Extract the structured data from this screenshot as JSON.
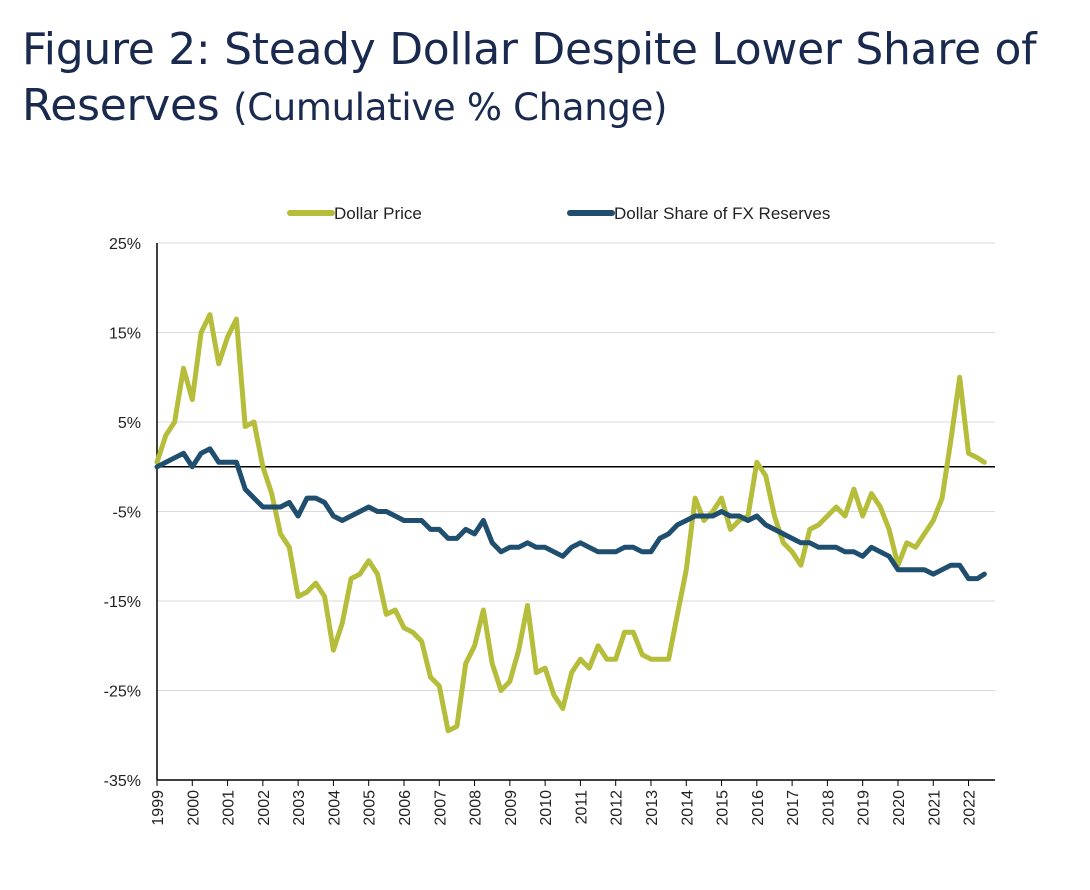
{
  "title": {
    "main": "Figure 2: Steady Dollar Despite Lower Share of Reserves",
    "suffix": "(Cumulative % Change)"
  },
  "chart_data": {
    "type": "line",
    "title": "Figure 2: Steady Dollar Despite Lower Share of Reserves (Cumulative % Change)",
    "xlabel": "",
    "ylabel": "",
    "ylim": [
      -35,
      25
    ],
    "yticks": [
      25,
      15,
      5,
      -5,
      -15,
      -25,
      -35
    ],
    "ytick_labels": [
      "25%",
      "15%",
      "5%",
      "-5%",
      "-15%",
      "-25%",
      "-35%"
    ],
    "xlim": [
      1999,
      2022.75
    ],
    "xticks": [
      1999,
      2000,
      2001,
      2002,
      2003,
      2004,
      2005,
      2006,
      2007,
      2008,
      2009,
      2010,
      2011,
      2012,
      2013,
      2014,
      2015,
      2016,
      2017,
      2018,
      2019,
      2020,
      2021,
      2022
    ],
    "grid": true,
    "zero_line": true,
    "legend": "top",
    "colors": {
      "Dollar Price": "#b5bd3a",
      "Dollar Share of FX Reserves": "#1f4e6e"
    },
    "series": [
      {
        "name": "Dollar Price",
        "points": [
          [
            1999.0,
            0.5
          ],
          [
            1999.25,
            3.5
          ],
          [
            1999.5,
            5
          ],
          [
            1999.75,
            11
          ],
          [
            2000.0,
            7.5
          ],
          [
            2000.25,
            15
          ],
          [
            2000.5,
            17
          ],
          [
            2000.75,
            11.5
          ],
          [
            2001.0,
            14.5
          ],
          [
            2001.25,
            16.5
          ],
          [
            2001.5,
            4.5
          ],
          [
            2001.75,
            5
          ],
          [
            2002.0,
            0
          ],
          [
            2002.25,
            -3
          ],
          [
            2002.5,
            -7.5
          ],
          [
            2002.75,
            -9
          ],
          [
            2003.0,
            -14.5
          ],
          [
            2003.25,
            -14
          ],
          [
            2003.5,
            -13
          ],
          [
            2003.75,
            -14.5
          ],
          [
            2004.0,
            -20.5
          ],
          [
            2004.25,
            -17.5
          ],
          [
            2004.5,
            -12.5
          ],
          [
            2004.75,
            -12
          ],
          [
            2005.0,
            -10.5
          ],
          [
            2005.25,
            -12
          ],
          [
            2005.5,
            -16.5
          ],
          [
            2005.75,
            -16
          ],
          [
            2006.0,
            -18
          ],
          [
            2006.25,
            -18.5
          ],
          [
            2006.5,
            -19.5
          ],
          [
            2006.75,
            -23.5
          ],
          [
            2007.0,
            -24.5
          ],
          [
            2007.25,
            -29.5
          ],
          [
            2007.5,
            -29
          ],
          [
            2007.75,
            -22
          ],
          [
            2008.0,
            -20
          ],
          [
            2008.25,
            -16
          ],
          [
            2008.5,
            -22
          ],
          [
            2008.75,
            -25
          ],
          [
            2009.0,
            -24
          ],
          [
            2009.25,
            -20.5
          ],
          [
            2009.5,
            -15.5
          ],
          [
            2009.75,
            -23
          ],
          [
            2010.0,
            -22.5
          ],
          [
            2010.25,
            -25.5
          ],
          [
            2010.5,
            -27
          ],
          [
            2010.75,
            -23
          ],
          [
            2011.0,
            -21.5
          ],
          [
            2011.25,
            -22.5
          ],
          [
            2011.5,
            -20
          ],
          [
            2011.75,
            -21.5
          ],
          [
            2012.0,
            -21.5
          ],
          [
            2012.25,
            -18.5
          ],
          [
            2012.5,
            -18.5
          ],
          [
            2012.75,
            -21
          ],
          [
            2013.0,
            -21.5
          ],
          [
            2013.25,
            -21.5
          ],
          [
            2013.5,
            -21.5
          ],
          [
            2013.75,
            -16.5
          ],
          [
            2014.0,
            -11.5
          ],
          [
            2014.25,
            -3.5
          ],
          [
            2014.5,
            -6
          ],
          [
            2014.75,
            -5
          ],
          [
            2015.0,
            -3.5
          ],
          [
            2015.25,
            -7
          ],
          [
            2015.5,
            -6
          ],
          [
            2015.75,
            -5.5
          ],
          [
            2016.0,
            0.5
          ],
          [
            2016.25,
            -1
          ],
          [
            2016.5,
            -5.5
          ],
          [
            2016.75,
            -8.5
          ],
          [
            2017.0,
            -9.5
          ],
          [
            2017.25,
            -11
          ],
          [
            2017.5,
            -7
          ],
          [
            2017.75,
            -6.5
          ],
          [
            2018.0,
            -5.5
          ],
          [
            2018.25,
            -4.5
          ],
          [
            2018.5,
            -5.5
          ],
          [
            2018.75,
            -2.5
          ],
          [
            2019.0,
            -5.5
          ],
          [
            2019.25,
            -3
          ],
          [
            2019.5,
            -4.5
          ],
          [
            2019.75,
            -7
          ],
          [
            2020.0,
            -11
          ],
          [
            2020.25,
            -8.5
          ],
          [
            2020.5,
            -9
          ],
          [
            2020.75,
            -7.5
          ],
          [
            2021.0,
            -6
          ],
          [
            2021.25,
            -3.5
          ],
          [
            2021.5,
            3
          ],
          [
            2021.75,
            10
          ],
          [
            2022.0,
            1.5
          ],
          [
            2022.25,
            1
          ],
          [
            2022.45,
            0.5
          ]
        ]
      },
      {
        "name": "Dollar Share of FX Reserves",
        "points": [
          [
            1999.0,
            0
          ],
          [
            1999.25,
            0.5
          ],
          [
            1999.5,
            1
          ],
          [
            1999.75,
            1.5
          ],
          [
            2000.0,
            0
          ],
          [
            2000.25,
            1.5
          ],
          [
            2000.5,
            2
          ],
          [
            2000.75,
            0.5
          ],
          [
            2001.0,
            0.5
          ],
          [
            2001.25,
            0.5
          ],
          [
            2001.5,
            -2.5
          ],
          [
            2001.75,
            -3.5
          ],
          [
            2002.0,
            -4.5
          ],
          [
            2002.25,
            -4.5
          ],
          [
            2002.5,
            -4.5
          ],
          [
            2002.75,
            -4
          ],
          [
            2003.0,
            -5.5
          ],
          [
            2003.25,
            -3.5
          ],
          [
            2003.5,
            -3.5
          ],
          [
            2003.75,
            -4
          ],
          [
            2004.0,
            -5.5
          ],
          [
            2004.25,
            -6
          ],
          [
            2004.5,
            -5.5
          ],
          [
            2004.75,
            -5
          ],
          [
            2005.0,
            -4.5
          ],
          [
            2005.25,
            -5
          ],
          [
            2005.5,
            -5
          ],
          [
            2005.75,
            -5.5
          ],
          [
            2006.0,
            -6
          ],
          [
            2006.25,
            -6
          ],
          [
            2006.5,
            -6
          ],
          [
            2006.75,
            -7
          ],
          [
            2007.0,
            -7
          ],
          [
            2007.25,
            -8
          ],
          [
            2007.5,
            -8
          ],
          [
            2007.75,
            -7
          ],
          [
            2008.0,
            -7.5
          ],
          [
            2008.25,
            -6
          ],
          [
            2008.5,
            -8.5
          ],
          [
            2008.75,
            -9.5
          ],
          [
            2009.0,
            -9
          ],
          [
            2009.25,
            -9
          ],
          [
            2009.5,
            -8.5
          ],
          [
            2009.75,
            -9
          ],
          [
            2010.0,
            -9
          ],
          [
            2010.25,
            -9.5
          ],
          [
            2010.5,
            -10
          ],
          [
            2010.75,
            -9
          ],
          [
            2011.0,
            -8.5
          ],
          [
            2011.25,
            -9
          ],
          [
            2011.5,
            -9.5
          ],
          [
            2011.75,
            -9.5
          ],
          [
            2012.0,
            -9.5
          ],
          [
            2012.25,
            -9
          ],
          [
            2012.5,
            -9
          ],
          [
            2012.75,
            -9.5
          ],
          [
            2013.0,
            -9.5
          ],
          [
            2013.25,
            -8
          ],
          [
            2013.5,
            -7.5
          ],
          [
            2013.75,
            -6.5
          ],
          [
            2014.0,
            -6
          ],
          [
            2014.25,
            -5.5
          ],
          [
            2014.5,
            -5.5
          ],
          [
            2014.75,
            -5.5
          ],
          [
            2015.0,
            -5
          ],
          [
            2015.25,
            -5.5
          ],
          [
            2015.5,
            -5.5
          ],
          [
            2015.75,
            -6
          ],
          [
            2016.0,
            -5.5
          ],
          [
            2016.25,
            -6.5
          ],
          [
            2016.5,
            -7
          ],
          [
            2016.75,
            -7.5
          ],
          [
            2017.0,
            -8
          ],
          [
            2017.25,
            -8.5
          ],
          [
            2017.5,
            -8.5
          ],
          [
            2017.75,
            -9
          ],
          [
            2018.0,
            -9
          ],
          [
            2018.25,
            -9
          ],
          [
            2018.5,
            -9.5
          ],
          [
            2018.75,
            -9.5
          ],
          [
            2019.0,
            -10
          ],
          [
            2019.25,
            -9
          ],
          [
            2019.5,
            -9.5
          ],
          [
            2019.75,
            -10
          ],
          [
            2020.0,
            -11.5
          ],
          [
            2020.25,
            -11.5
          ],
          [
            2020.5,
            -11.5
          ],
          [
            2020.75,
            -11.5
          ],
          [
            2021.0,
            -12
          ],
          [
            2021.25,
            -11.5
          ],
          [
            2021.5,
            -11
          ],
          [
            2021.75,
            -11
          ],
          [
            2022.0,
            -12.5
          ],
          [
            2022.25,
            -12.5
          ],
          [
            2022.45,
            -12
          ]
        ]
      }
    ]
  }
}
